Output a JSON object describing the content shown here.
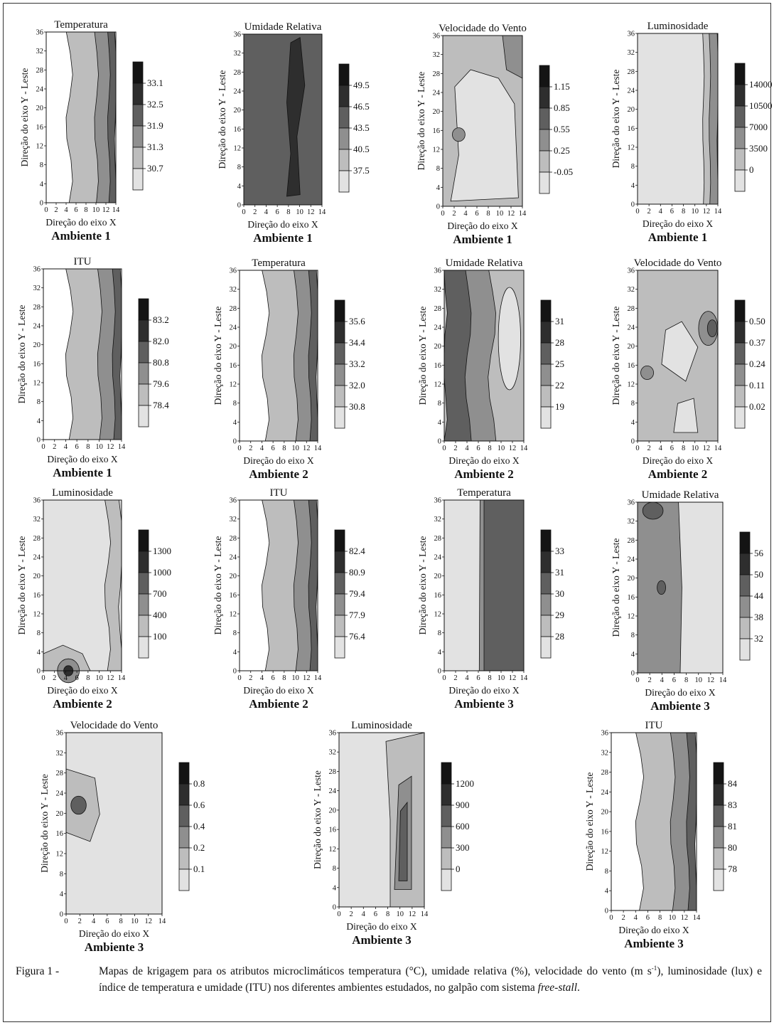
{
  "colors": {
    "levels": [
      "#e2e2e2",
      "#bdbdbd",
      "#8f8f8f",
      "#5f5f5f",
      "#2e2e2e"
    ],
    "line": "#111111"
  },
  "chart_data": [
    {
      "type": "heatmap",
      "subtype": "contour",
      "title": "Temperatura",
      "environment": "Ambiente 1",
      "xlabel": "Direção do eixo X",
      "ylabel": "Direção do eixo Y - Leste",
      "xlim": [
        0,
        14
      ],
      "ylim": [
        0,
        36
      ],
      "x_ticks": [
        "0",
        "2",
        "4",
        "6",
        "8",
        "10",
        "12",
        "14"
      ],
      "y_ticks": [
        "0",
        "4",
        "8",
        "12",
        "16",
        "20",
        "24",
        "28",
        "32",
        "36"
      ],
      "legend_levels": [
        "33.1",
        "32.5",
        "31.9",
        "31.3",
        "30.7"
      ],
      "profile": "increase-toward-east"
    },
    {
      "type": "heatmap",
      "subtype": "contour",
      "title": "Umidade Relativa",
      "environment": "Ambiente 1",
      "xlabel": "Direção do eixo X",
      "ylabel": "Direção do eixo Y - Leste",
      "xlim": [
        0,
        14
      ],
      "ylim": [
        0,
        36
      ],
      "x_ticks": [
        "0",
        "2",
        "4",
        "6",
        "8",
        "10",
        "12",
        "14"
      ],
      "y_ticks": [
        "0",
        "4",
        "8",
        "12",
        "16",
        "20",
        "24",
        "28",
        "32",
        "36"
      ],
      "legend_levels": [
        "49.5",
        "46.5",
        "43.5",
        "40.5",
        "37.5"
      ],
      "profile": "dark-with-black-core"
    },
    {
      "type": "heatmap",
      "subtype": "contour",
      "title": "Velocidade do Vento",
      "environment": "Ambiente 1",
      "xlabel": "Direção do eixo X",
      "ylabel": "Direção do eixo Y - Leste",
      "xlim": [
        0,
        14
      ],
      "ylim": [
        0,
        36
      ],
      "x_ticks": [
        "0",
        "2",
        "4",
        "6",
        "8",
        "10",
        "12",
        "14"
      ],
      "y_ticks": [
        "0",
        "4",
        "8",
        "12",
        "16",
        "20",
        "24",
        "28",
        "32",
        "36"
      ],
      "legend_levels": [
        "1.15",
        "0.85",
        "0.55",
        "0.25",
        "-0.05"
      ],
      "profile": "light-center-patches"
    },
    {
      "type": "heatmap",
      "subtype": "contour",
      "title": "Luminosidade",
      "environment": "Ambiente 1",
      "xlabel": "Direção do eixo X",
      "ylabel": "Direção do eixo Y - Leste",
      "xlim": [
        0,
        14
      ],
      "ylim": [
        0,
        36
      ],
      "x_ticks": [
        "0",
        "2",
        "4",
        "6",
        "8",
        "10",
        "12",
        "14"
      ],
      "y_ticks": [
        "0",
        "4",
        "8",
        "12",
        "16",
        "20",
        "24",
        "28",
        "32",
        "36"
      ],
      "legend_levels": [
        "14000",
        "10500",
        "7000",
        "3500",
        "0"
      ],
      "profile": "light-with-east-band"
    },
    {
      "type": "heatmap",
      "subtype": "contour",
      "title": "ITU",
      "environment": "Ambiente 1",
      "xlabel": "Direção do eixo X",
      "ylabel": "Direção do eixo Y - Leste",
      "xlim": [
        0,
        14
      ],
      "ylim": [
        0,
        36
      ],
      "x_ticks": [
        "0",
        "2",
        "4",
        "6",
        "8",
        "10",
        "12",
        "14"
      ],
      "y_ticks": [
        "0",
        "4",
        "8",
        "12",
        "16",
        "20",
        "24",
        "28",
        "32",
        "36"
      ],
      "legend_levels": [
        "83.2",
        "82.0",
        "80.8",
        "79.6",
        "78.4"
      ],
      "profile": "increase-toward-east"
    },
    {
      "type": "heatmap",
      "subtype": "contour",
      "title": "Temperatura",
      "environment": "Ambiente 2",
      "xlabel": "Direção do eixo X",
      "ylabel": "Direção do eixo Y - Leste",
      "xlim": [
        0,
        14
      ],
      "ylim": [
        0,
        36
      ],
      "x_ticks": [
        "0",
        "2",
        "4",
        "6",
        "8",
        "10",
        "12",
        "14"
      ],
      "y_ticks": [
        "0",
        "4",
        "8",
        "12",
        "16",
        "20",
        "24",
        "28",
        "32",
        "36"
      ],
      "legend_levels": [
        "35.6",
        "34.4",
        "33.2",
        "32.0",
        "30.8"
      ],
      "profile": "increase-toward-east"
    },
    {
      "type": "heatmap",
      "subtype": "contour",
      "title": "Umidade Relativa",
      "environment": "Ambiente 2",
      "xlabel": "Direção do eixo X",
      "ylabel": "Direção do eixo Y - Leste",
      "xlim": [
        0,
        14
      ],
      "ylim": [
        0,
        36
      ],
      "x_ticks": [
        "0",
        "2",
        "4",
        "6",
        "8",
        "10",
        "12",
        "14"
      ],
      "y_ticks": [
        "0",
        "4",
        "8",
        "12",
        "16",
        "20",
        "24",
        "28",
        "32",
        "36"
      ],
      "legend_levels": [
        "31",
        "28",
        "25",
        "22",
        "19"
      ],
      "profile": "decrease-toward-east"
    },
    {
      "type": "heatmap",
      "subtype": "contour",
      "title": "Velocidade do Vento",
      "environment": "Ambiente 2",
      "xlabel": "Direção do eixo X",
      "ylabel": "Direção do eixo Y - Leste",
      "xlim": [
        0,
        14
      ],
      "ylim": [
        0,
        36
      ],
      "x_ticks": [
        "0",
        "2",
        "4",
        "6",
        "8",
        "10",
        "12",
        "14"
      ],
      "y_ticks": [
        "0",
        "4",
        "8",
        "12",
        "16",
        "20",
        "24",
        "28",
        "32",
        "36"
      ],
      "legend_levels": [
        "0.50",
        "0.37",
        "0.24",
        "0.11",
        "0.02"
      ],
      "profile": "patches-dark-east"
    },
    {
      "type": "heatmap",
      "subtype": "contour",
      "title": "Luminosidade",
      "environment": "Ambiente 2",
      "xlabel": "Direção do eixo X",
      "ylabel": "Direção do eixo Y - Leste",
      "xlim": [
        0,
        14
      ],
      "ylim": [
        0,
        36
      ],
      "x_ticks": [
        "0",
        "2",
        "4",
        "6",
        "8",
        "10",
        "12",
        "14"
      ],
      "y_ticks": [
        "0",
        "4",
        "8",
        "12",
        "16",
        "20",
        "24",
        "28",
        "32",
        "36"
      ],
      "legend_levels": [
        "1300",
        "1000",
        "700",
        "400",
        "100"
      ],
      "profile": "light-with-south-spot"
    },
    {
      "type": "heatmap",
      "subtype": "contour",
      "title": "ITU",
      "environment": "Ambiente 2",
      "xlabel": "Direção do eixo X",
      "ylabel": "Direção do eixo Y - Leste",
      "xlim": [
        0,
        14
      ],
      "ylim": [
        0,
        36
      ],
      "x_ticks": [
        "0",
        "2",
        "4",
        "6",
        "8",
        "10",
        "12",
        "14"
      ],
      "y_ticks": [
        "0",
        "4",
        "8",
        "12",
        "16",
        "20",
        "24",
        "28",
        "32",
        "36"
      ],
      "legend_levels": [
        "82.4",
        "80.9",
        "79.4",
        "77.9",
        "76.4"
      ],
      "profile": "increase-toward-east"
    },
    {
      "type": "heatmap",
      "subtype": "contour",
      "title": "Temperatura",
      "environment": "Ambiente 3",
      "xlabel": "Direção do eixo X",
      "ylabel": "Direção do eixo Y - Leste",
      "xlim": [
        0,
        14
      ],
      "ylim": [
        0,
        36
      ],
      "x_ticks": [
        "0",
        "2",
        "4",
        "6",
        "8",
        "10",
        "12",
        "14"
      ],
      "y_ticks": [
        "0",
        "4",
        "8",
        "12",
        "16",
        "20",
        "24",
        "28",
        "32",
        "36"
      ],
      "legend_levels": [
        "33",
        "31",
        "30",
        "29",
        "28"
      ],
      "profile": "sharp-split"
    },
    {
      "type": "heatmap",
      "subtype": "contour",
      "title": "Umidade Relativa",
      "environment": "Ambiente 3",
      "xlabel": "Direção do eixo X",
      "ylabel": "Direção do eixo Y - Leste",
      "xlim": [
        0,
        14
      ],
      "ylim": [
        0,
        36
      ],
      "x_ticks": [
        "0",
        "2",
        "4",
        "6",
        "8",
        "10",
        "12",
        "14"
      ],
      "y_ticks": [
        "0",
        "4",
        "8",
        "12",
        "16",
        "20",
        "24",
        "28",
        "32",
        "36"
      ],
      "legend_levels": [
        "56",
        "50",
        "44",
        "38",
        "32"
      ],
      "profile": "split-west-dark"
    },
    {
      "type": "heatmap",
      "subtype": "contour",
      "title": "Velocidade do Vento",
      "environment": "Ambiente 3",
      "xlabel": "Direção do eixo X",
      "ylabel": "Direção do eixo Y - Leste",
      "xlim": [
        0,
        14
      ],
      "ylim": [
        0,
        36
      ],
      "x_ticks": [
        "0",
        "2",
        "4",
        "6",
        "8",
        "10",
        "12",
        "14"
      ],
      "y_ticks": [
        "0",
        "4",
        "8",
        "12",
        "16",
        "20",
        "24",
        "28",
        "32",
        "36"
      ],
      "legend_levels": [
        "0.8",
        "0.6",
        "0.4",
        "0.2",
        "0.1"
      ],
      "profile": "light-with-west-spot"
    },
    {
      "type": "heatmap",
      "subtype": "contour",
      "title": "Luminosidade",
      "environment": "Ambiente 3",
      "xlabel": "Direção do eixo X",
      "ylabel": "Direção do eixo Y - Leste",
      "xlim": [
        0,
        14
      ],
      "ylim": [
        0,
        36
      ],
      "x_ticks": [
        "0",
        "2",
        "4",
        "6",
        "8",
        "10",
        "12",
        "14"
      ],
      "y_ticks": [
        "0",
        "4",
        "8",
        "12",
        "16",
        "20",
        "24",
        "28",
        "32",
        "36"
      ],
      "legend_levels": [
        "1200",
        "900",
        "600",
        "300",
        "0"
      ],
      "profile": "light-with-east-core"
    },
    {
      "type": "heatmap",
      "subtype": "contour",
      "title": "ITU",
      "environment": "Ambiente 3",
      "xlabel": "Direção do eixo X",
      "ylabel": "Direção do eixo Y - Leste",
      "xlim": [
        0,
        14
      ],
      "ylim": [
        0,
        36
      ],
      "x_ticks": [
        "0",
        "2",
        "4",
        "6",
        "8",
        "10",
        "12",
        "14"
      ],
      "y_ticks": [
        "0",
        "4",
        "8",
        "12",
        "16",
        "20",
        "24",
        "28",
        "32",
        "36"
      ],
      "legend_levels": [
        "84",
        "83",
        "81",
        "80",
        "78"
      ],
      "profile": "increase-toward-east"
    }
  ],
  "caption": {
    "label": "Figura 1 -",
    "text_before": "Mapas de krigagem para os atributos microclimáticos temperatura (°C), umidade relativa (%), velocidade do vento (m s",
    "superscript": "-1",
    "text_middle": "), luminosidade (lux) e índice de temperatura e umidade (ITU) nos diferentes ambientes estudados, no galpão com sistema ",
    "italic": "free-stall",
    "text_after": "."
  }
}
